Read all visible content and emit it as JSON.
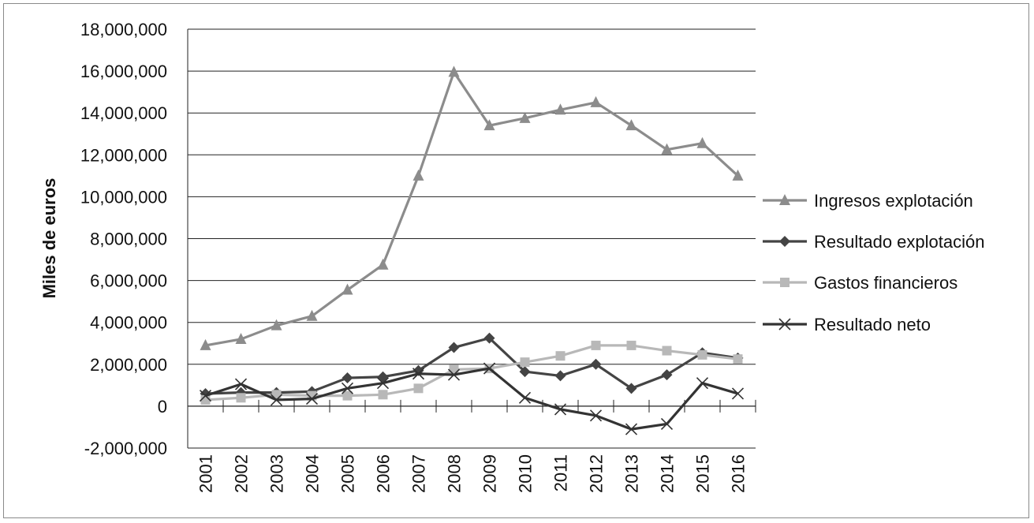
{
  "chart_data": {
    "type": "line",
    "title": "",
    "xlabel": "",
    "ylabel": "Miles de euros",
    "ylim": [
      -2000000,
      18000000
    ],
    "yticks": [
      -2000000,
      0,
      2000000,
      4000000,
      6000000,
      8000000,
      10000000,
      12000000,
      14000000,
      16000000,
      18000000
    ],
    "ytick_labels": [
      "-2,000,000",
      "0",
      "2,000,000",
      "4,000,000",
      "6,000,000",
      "8,000,000",
      "10,000,000",
      "12,000,000",
      "14,000,000",
      "16,000,000",
      "18,000,000"
    ],
    "categories": [
      "2001",
      "2002",
      "2003",
      "2004",
      "2005",
      "2006",
      "2007",
      "2008",
      "2009",
      "2010",
      "2011",
      "2012",
      "2013",
      "2014",
      "2015",
      "2016"
    ],
    "grid": "horizontal",
    "legend_position": "right",
    "series": [
      {
        "name": "Ingresos explotación",
        "color": "#8c8c8c",
        "marker": "triangle",
        "values": [
          2900000,
          3200000,
          3850000,
          4300000,
          5550000,
          6750000,
          11000000,
          15950000,
          13400000,
          13750000,
          14150000,
          14500000,
          13400000,
          12250000,
          12550000,
          11000000
        ]
      },
      {
        "name": "Resultado explotación",
        "color": "#444444",
        "marker": "diamond",
        "values": [
          600000,
          650000,
          650000,
          700000,
          1350000,
          1400000,
          1700000,
          2800000,
          3250000,
          1650000,
          1450000,
          2000000,
          850000,
          1500000,
          2550000,
          2300000
        ]
      },
      {
        "name": "Gastos financieros",
        "color": "#b8b8b8",
        "marker": "square",
        "values": [
          300000,
          400000,
          550000,
          500000,
          500000,
          550000,
          850000,
          1750000,
          1800000,
          2100000,
          2400000,
          2900000,
          2900000,
          2650000,
          2450000,
          2250000
        ]
      },
      {
        "name": "Resultado neto",
        "color": "#333333",
        "marker": "x",
        "values": [
          500000,
          1050000,
          300000,
          350000,
          850000,
          1100000,
          1550000,
          1500000,
          1800000,
          400000,
          -150000,
          -450000,
          -1100000,
          -850000,
          1100000,
          600000
        ]
      }
    ]
  }
}
